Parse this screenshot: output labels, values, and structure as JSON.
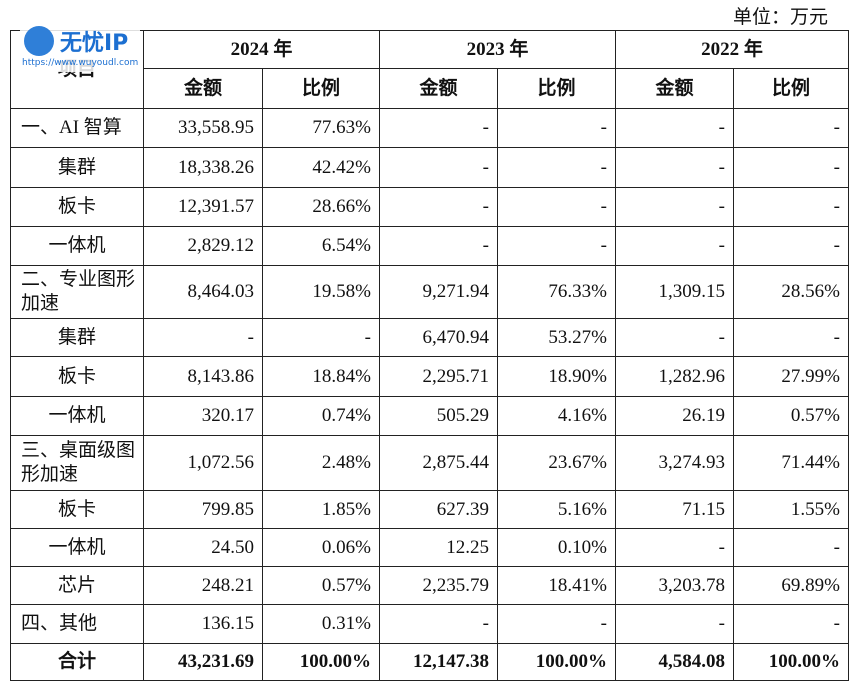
{
  "unit": "单位：万元",
  "watermark": {
    "title": "无忧IP",
    "url": "https://www.wuyoudl.com"
  },
  "table": {
    "header": {
      "item": "项目",
      "years": [
        "2024 年",
        "2023 年",
        "2022 年"
      ],
      "amount": "金额",
      "ratio": "比例"
    },
    "rows": [
      [
        "一、AI 智算",
        "33,558.95",
        "77.63%",
        "-",
        "-",
        "-",
        "-"
      ],
      [
        "集群",
        "18,338.26",
        "42.42%",
        "-",
        "-",
        "-",
        "-"
      ],
      [
        "板卡",
        "12,391.57",
        "28.66%",
        "-",
        "-",
        "-",
        "-"
      ],
      [
        "一体机",
        "2,829.12",
        "6.54%",
        "-",
        "-",
        "-",
        "-"
      ],
      [
        "二、专业图形加速",
        "8,464.03",
        "19.58%",
        "9,271.94",
        "76.33%",
        "1,309.15",
        "28.56%"
      ],
      [
        "集群",
        "-",
        "-",
        "6,470.94",
        "53.27%",
        "-",
        "-"
      ],
      [
        "板卡",
        "8,143.86",
        "18.84%",
        "2,295.71",
        "18.90%",
        "1,282.96",
        "27.99%"
      ],
      [
        "一体机",
        "320.17",
        "0.74%",
        "505.29",
        "4.16%",
        "26.19",
        "0.57%"
      ],
      [
        "三、桌面级图形加速",
        "1,072.56",
        "2.48%",
        "2,875.44",
        "23.67%",
        "3,274.93",
        "71.44%"
      ],
      [
        "板卡",
        "799.85",
        "1.85%",
        "627.39",
        "5.16%",
        "71.15",
        "1.55%"
      ],
      [
        "一体机",
        "24.50",
        "0.06%",
        "12.25",
        "0.10%",
        "-",
        "-"
      ],
      [
        "芯片",
        "248.21",
        "0.57%",
        "2,235.79",
        "18.41%",
        "3,203.78",
        "69.89%"
      ],
      [
        "四、其他",
        "136.15",
        "0.31%",
        "-",
        "-",
        "-",
        "-"
      ],
      [
        "合计",
        "43,231.69",
        "100.00%",
        "12,147.38",
        "100.00%",
        "4,584.08",
        "100.00%"
      ]
    ]
  }
}
